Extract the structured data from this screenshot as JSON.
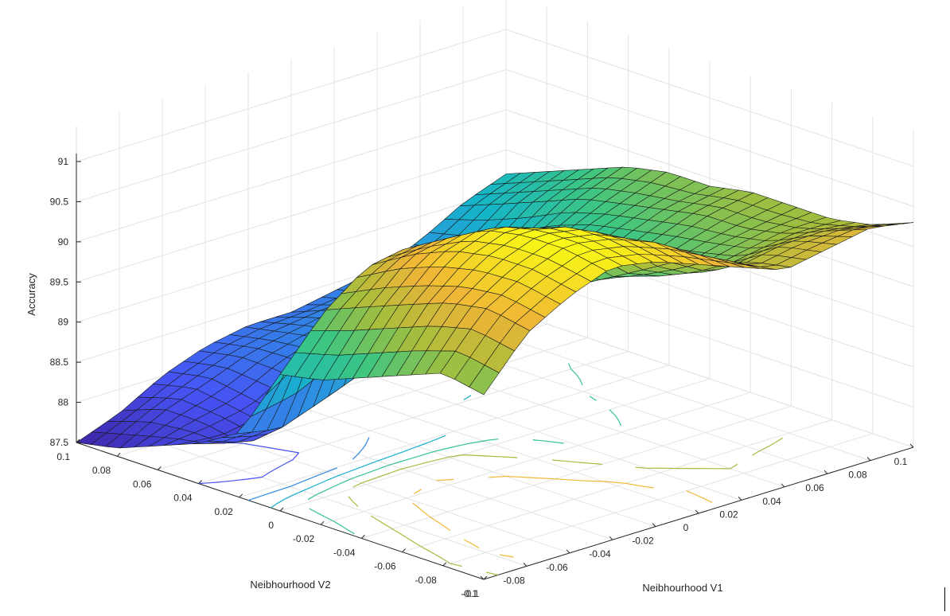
{
  "chart_data": {
    "type": "surface3d",
    "title": "",
    "xlabel": "Neibhourhood V1",
    "ylabel": "Neibhourhood V2",
    "zlabel": "Accuracy",
    "xlim": [
      -0.1,
      0.1
    ],
    "ylim": [
      -0.1,
      0.1
    ],
    "zlim": [
      87.4,
      91.1
    ],
    "xticks": [
      "-0.1",
      "-0.08",
      "-0.06",
      "-0.04",
      "-0.02",
      "0",
      "0.02",
      "0.04",
      "0.06",
      "0.08",
      "0.1"
    ],
    "yticks": [
      "-0.1",
      "-0.08",
      "-0.06",
      "-0.04",
      "-0.02",
      "0",
      "0.02",
      "0.04",
      "0.06",
      "0.08",
      "0.1"
    ],
    "zticks": [
      "87.5",
      "88",
      "88.5",
      "89",
      "89.5",
      "90",
      "90.5",
      "91"
    ],
    "grid": true,
    "colormap": "parula",
    "contour_projection": true,
    "x": [
      -0.1,
      -0.08,
      -0.06,
      -0.04,
      -0.02,
      0,
      0.02,
      0.04,
      0.06,
      0.08,
      0.1
    ],
    "y": [
      -0.1,
      -0.08,
      -0.06,
      -0.04,
      -0.02,
      0,
      0.02,
      0.04,
      0.06,
      0.08,
      0.1
    ],
    "z": [
      [
        89.8,
        90.4,
        90.7,
        90.9,
        90.8,
        90.6,
        90.4,
        90.2,
        90.3,
        90.4,
        90.3
      ],
      [
        89.9,
        90.5,
        90.8,
        91.0,
        90.9,
        90.7,
        90.4,
        90.1,
        90.2,
        90.2,
        90.1
      ],
      [
        89.7,
        90.4,
        90.8,
        91.0,
        90.9,
        90.6,
        90.1,
        89.8,
        89.9,
        90.0,
        90.0
      ],
      [
        89.5,
        90.2,
        90.7,
        90.9,
        90.7,
        90.3,
        89.8,
        89.6,
        89.8,
        89.9,
        90.0
      ],
      [
        89.3,
        90.0,
        90.5,
        90.6,
        90.4,
        90.0,
        89.5,
        89.5,
        89.7,
        89.9,
        90.0
      ],
      [
        89.2,
        89.8,
        90.2,
        90.3,
        90.1,
        89.7,
        89.3,
        89.3,
        89.6,
        89.8,
        89.9
      ],
      [
        88.3,
        88.2,
        88.4,
        88.6,
        88.8,
        89.0,
        89.2,
        89.2,
        89.5,
        89.7,
        89.9
      ],
      [
        88.0,
        87.8,
        87.9,
        88.2,
        88.5,
        88.8,
        89.0,
        89.1,
        89.3,
        89.6,
        89.8
      ],
      [
        87.8,
        87.9,
        88.0,
        88.3,
        88.5,
        88.6,
        88.7,
        88.8,
        89.0,
        89.4,
        89.6
      ],
      [
        87.6,
        87.9,
        88.1,
        88.3,
        88.4,
        88.5,
        88.5,
        88.6,
        88.8,
        89.2,
        89.4
      ],
      [
        87.5,
        87.7,
        88.0,
        88.2,
        88.3,
        88.3,
        88.4,
        88.5,
        88.7,
        89.0,
        89.2
      ]
    ]
  }
}
